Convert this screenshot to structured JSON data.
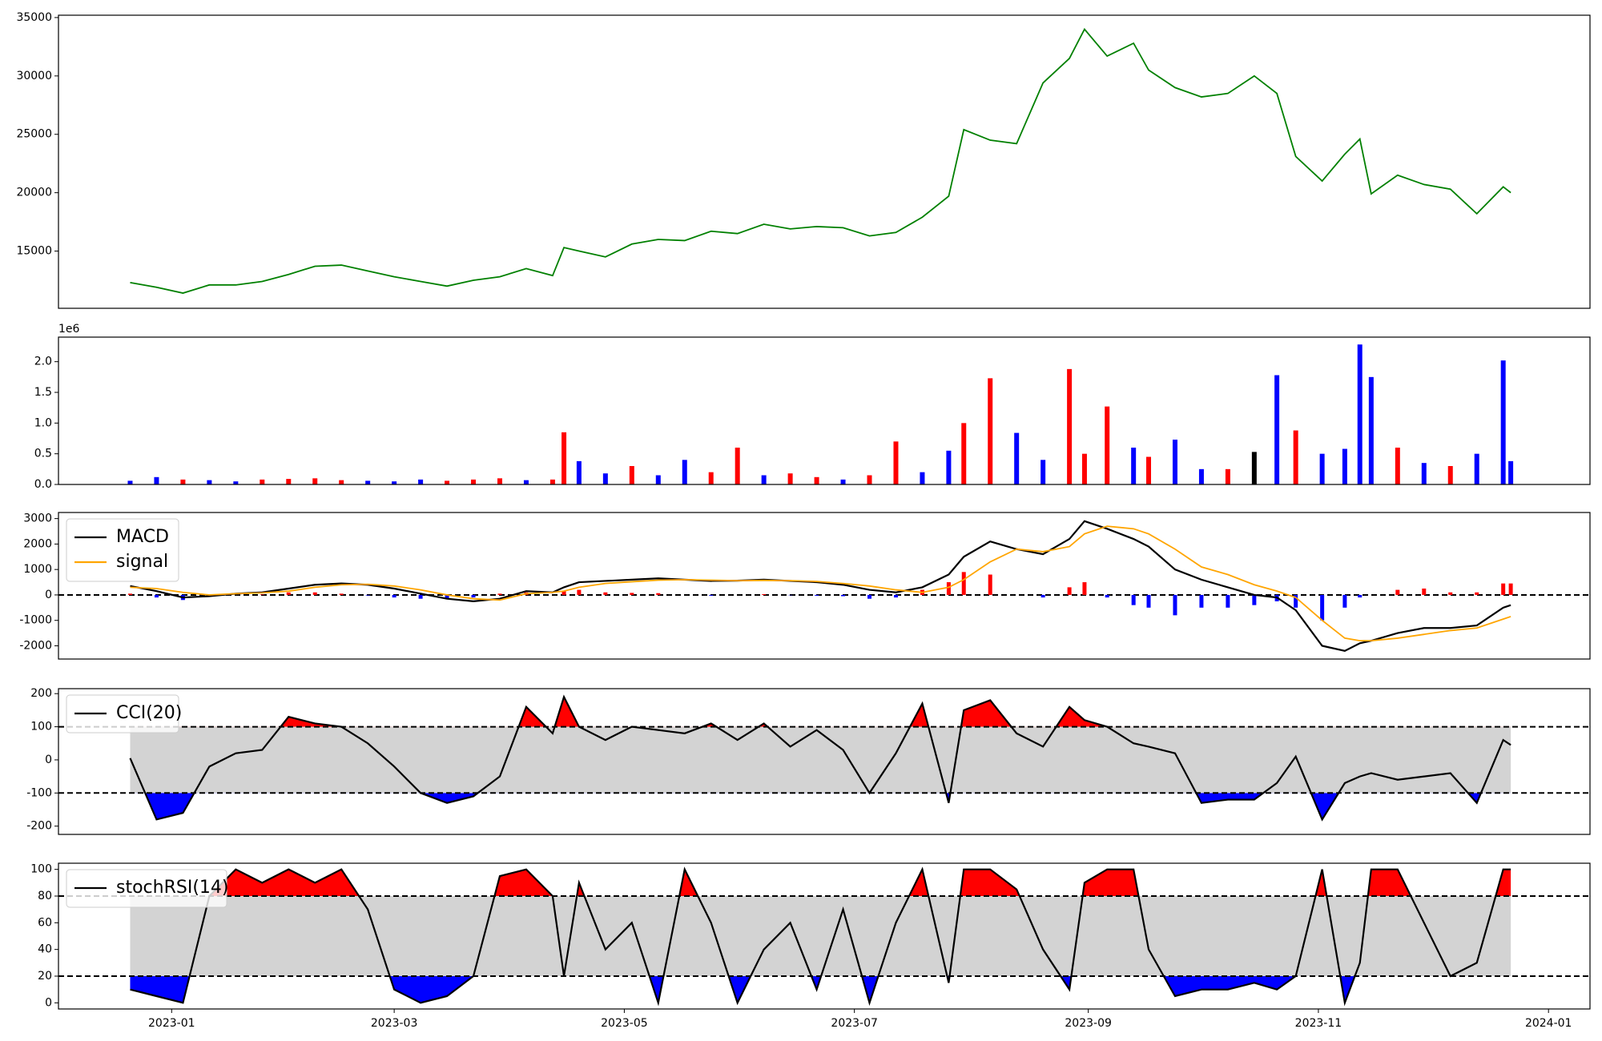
{
  "chart_data": [
    {
      "type": "line",
      "color": "green",
      "x": [
        -11,
        -4,
        3,
        10,
        17,
        24,
        31,
        38,
        45,
        52,
        59,
        66,
        73,
        80,
        87,
        94,
        101,
        104,
        108,
        115,
        122,
        129,
        136,
        143,
        150,
        157,
        164,
        171,
        178,
        185,
        192,
        199,
        206,
        210,
        217,
        224,
        231,
        238,
        242,
        248,
        255,
        259,
        266,
        273,
        280,
        287,
        293,
        298,
        305,
        311,
        315,
        318,
        325,
        332,
        339,
        346,
        353,
        355
      ],
      "values": [
        12300,
        11900,
        11400,
        12100,
        12100,
        12400,
        13000,
        13700,
        13800,
        13300,
        12800,
        12400,
        12000,
        12500,
        12800,
        13500,
        12900,
        15300,
        15000,
        14500,
        15600,
        16000,
        15900,
        16700,
        16500,
        17300,
        16900,
        17100,
        17000,
        16300,
        16600,
        17900,
        19700,
        25400,
        24500,
        24200,
        29400,
        31500,
        34000,
        31700,
        32800,
        30500,
        29000,
        28200,
        28500,
        30000,
        28500,
        23100,
        21000,
        23300,
        24600,
        19900,
        21500,
        20700,
        20300,
        18200,
        20500,
        20000
      ],
      "xlim": [
        -30,
        376
      ],
      "ylim": [
        10100,
        35200
      ],
      "yticks": [
        15000,
        20000,
        25000,
        30000,
        35000
      ]
    },
    {
      "type": "bar",
      "y_offset_label": "1e6",
      "x": [
        -11,
        -4,
        3,
        10,
        17,
        24,
        31,
        38,
        45,
        52,
        59,
        66,
        73,
        80,
        87,
        94,
        101,
        104,
        108,
        115,
        122,
        129,
        136,
        143,
        150,
        157,
        164,
        171,
        178,
        185,
        192,
        199,
        206,
        210,
        217,
        224,
        231,
        238,
        242,
        248,
        255,
        259,
        266,
        273,
        280,
        287,
        293,
        298,
        305,
        311,
        315,
        318,
        325,
        332,
        339,
        346,
        353,
        355
      ],
      "values": [
        0.06,
        0.12,
        0.08,
        0.07,
        0.05,
        0.08,
        0.09,
        0.1,
        0.07,
        0.06,
        0.05,
        0.08,
        0.06,
        0.08,
        0.1,
        0.07,
        0.08,
        0.85,
        0.38,
        0.18,
        0.3,
        0.15,
        0.4,
        0.2,
        0.6,
        0.15,
        0.18,
        0.12,
        0.08,
        0.15,
        0.7,
        0.2,
        0.55,
        1.0,
        1.73,
        0.84,
        0.4,
        1.88,
        0.5,
        1.27,
        0.6,
        0.45,
        0.73,
        0.25,
        0.25,
        0.53,
        1.78,
        0.88,
        0.5,
        0.58,
        2.28,
        1.75,
        0.6,
        0.35,
        0.3,
        0.5,
        2.02,
        0.38
      ],
      "colors": [
        "blue",
        "blue",
        "red",
        "blue",
        "blue",
        "red",
        "red",
        "red",
        "red",
        "blue",
        "blue",
        "blue",
        "red",
        "red",
        "red",
        "blue",
        "red",
        "red",
        "blue",
        "blue",
        "red",
        "blue",
        "blue",
        "red",
        "red",
        "blue",
        "red",
        "red",
        "blue",
        "red",
        "red",
        "blue",
        "blue",
        "red",
        "red",
        "blue",
        "blue",
        "red",
        "red",
        "red",
        "blue",
        "red",
        "blue",
        "blue",
        "red",
        "black",
        "blue",
        "red",
        "blue",
        "blue",
        "blue",
        "blue",
        "red",
        "blue",
        "red",
        "blue",
        "blue",
        "blue"
      ],
      "xlim": [
        -30,
        376
      ],
      "ylim": [
        0,
        2.4
      ],
      "yticks": [
        {
          "value": 0,
          "label": "0.0"
        },
        0.5,
        {
          "value": 1,
          "label": "1.0"
        },
        1.5,
        {
          "value": 2,
          "label": "2.0"
        }
      ]
    },
    {
      "type": "line",
      "legend": "upper left",
      "x": [
        -11,
        -4,
        3,
        10,
        17,
        24,
        31,
        38,
        45,
        52,
        59,
        66,
        73,
        80,
        87,
        94,
        101,
        104,
        108,
        115,
        122,
        129,
        136,
        143,
        150,
        157,
        164,
        171,
        178,
        185,
        192,
        199,
        206,
        210,
        217,
        224,
        231,
        238,
        242,
        248,
        255,
        259,
        266,
        273,
        280,
        287,
        293,
        298,
        305,
        311,
        315,
        318,
        325,
        332,
        339,
        346,
        353,
        355
      ],
      "series": [
        {
          "name": "MACD",
          "color": "black",
          "values": [
            350,
            150,
            -100,
            -50,
            50,
            100,
            250,
            400,
            450,
            400,
            250,
            50,
            -150,
            -250,
            -150,
            150,
            100,
            300,
            500,
            550,
            600,
            650,
            600,
            550,
            560,
            600,
            550,
            500,
            400,
            200,
            100,
            300,
            800,
            1500,
            2100,
            1800,
            1600,
            2200,
            2900,
            2600,
            2200,
            1900,
            1000,
            600,
            300,
            0,
            -100,
            -600,
            -2000,
            -2200,
            -1900,
            -1800,
            -1500,
            -1300,
            -1300,
            -1200,
            -500,
            -400
          ]
        },
        {
          "name": "signal",
          "color": "orange",
          "values": [
            300,
            250,
            100,
            0,
            50,
            80,
            150,
            300,
            400,
            420,
            350,
            200,
            0,
            -150,
            -200,
            50,
            100,
            150,
            300,
            450,
            520,
            580,
            600,
            580,
            560,
            570,
            560,
            530,
            450,
            350,
            200,
            100,
            300,
            600,
            1300,
            1800,
            1700,
            1900,
            2400,
            2700,
            2600,
            2400,
            1800,
            1100,
            800,
            400,
            150,
            -100,
            -1000,
            -1700,
            -1800,
            -1800,
            -1700,
            -1550,
            -1400,
            -1300,
            -950,
            -850
          ]
        }
      ],
      "histogram": [
        50,
        -100,
        -200,
        -50,
        0,
        20,
        100,
        100,
        50,
        -20,
        -100,
        -150,
        -150,
        -100,
        50,
        100,
        0,
        150,
        200,
        100,
        80,
        70,
        0,
        -30,
        0,
        30,
        -10,
        -30,
        -50,
        -150,
        -100,
        200,
        500,
        900,
        800,
        0,
        -100,
        300,
        500,
        -100,
        -400,
        -500,
        -800,
        -500,
        -500,
        -400,
        -250,
        -500,
        -1000,
        -500,
        -100,
        0,
        200,
        250,
        100,
        100,
        450,
        450
      ],
      "up_color": "red",
      "down_color": "blue",
      "hlines": [
        0
      ],
      "xlim": [
        -30,
        376
      ],
      "ylim": [
        -2520,
        3240
      ],
      "yticks": [
        -2000,
        -1000,
        0,
        1000,
        2000,
        3000
      ]
    },
    {
      "type": "line",
      "legend": "upper left",
      "x": [
        -11,
        -4,
        3,
        10,
        17,
        24,
        31,
        38,
        45,
        52,
        59,
        66,
        73,
        80,
        87,
        94,
        101,
        104,
        108,
        115,
        122,
        129,
        136,
        143,
        150,
        157,
        164,
        171,
        178,
        185,
        192,
        199,
        206,
        210,
        217,
        224,
        231,
        238,
        242,
        248,
        255,
        259,
        266,
        273,
        280,
        287,
        293,
        298,
        305,
        311,
        315,
        318,
        325,
        332,
        339,
        346,
        353,
        355
      ],
      "series": [
        {
          "name": "CCI(20)",
          "color": "black",
          "values": [
            5,
            -180,
            -160,
            -20,
            20,
            30,
            130,
            110,
            100,
            50,
            -20,
            -100,
            -130,
            -110,
            -50,
            160,
            80,
            190,
            100,
            60,
            100,
            90,
            80,
            110,
            60,
            110,
            40,
            90,
            30,
            -100,
            20,
            170,
            -130,
            150,
            180,
            80,
            40,
            160,
            120,
            100,
            50,
            40,
            20,
            -130,
            -120,
            -120,
            -70,
            10,
            -180,
            -70,
            -50,
            -40,
            -60,
            -50,
            -40,
            -130,
            60,
            45
          ]
        }
      ],
      "hlines": [
        100,
        -100
      ],
      "upper_fill": "red",
      "lower_fill": "blue",
      "band_fill": "lightgray",
      "xlim": [
        -30,
        376
      ],
      "ylim": [
        -225,
        215
      ],
      "yticks": [
        -200,
        -100,
        0,
        100,
        200
      ]
    },
    {
      "type": "line",
      "legend": "upper left",
      "x": [
        -11,
        -4,
        3,
        10,
        17,
        24,
        31,
        38,
        45,
        52,
        59,
        66,
        73,
        80,
        87,
        94,
        101,
        104,
        108,
        115,
        122,
        129,
        136,
        143,
        150,
        157,
        164,
        171,
        178,
        185,
        192,
        199,
        206,
        210,
        217,
        224,
        231,
        238,
        242,
        248,
        255,
        259,
        266,
        273,
        280,
        287,
        293,
        298,
        305,
        311,
        315,
        318,
        325,
        332,
        339,
        346,
        353,
        355
      ],
      "series": [
        {
          "name": "stochRSI(14)",
          "color": "black",
          "values": [
            10,
            5,
            0,
            80,
            100,
            90,
            100,
            90,
            100,
            70,
            10,
            0,
            5,
            20,
            95,
            100,
            80,
            20,
            90,
            40,
            60,
            0,
            100,
            60,
            0,
            40,
            60,
            10,
            70,
            0,
            60,
            100,
            15,
            100,
            100,
            85,
            40,
            10,
            90,
            100,
            100,
            40,
            5,
            10,
            10,
            15,
            10,
            20,
            100,
            0,
            30,
            100,
            100,
            60,
            20,
            30,
            100,
            100
          ]
        }
      ],
      "hlines": [
        80,
        20
      ],
      "upper_fill": "red",
      "lower_fill": "blue",
      "band_fill": "lightgray",
      "xlim": [
        -30,
        376
      ],
      "ylim": [
        -4.6,
        104.6
      ],
      "yticks": [
        0,
        20,
        40,
        60,
        80,
        100
      ],
      "xticks": [
        {
          "value": 0,
          "label": "2023-01"
        },
        {
          "value": 59,
          "label": "2023-03"
        },
        {
          "value": 120,
          "label": "2023-05"
        },
        {
          "value": 181,
          "label": "2023-07"
        },
        {
          "value": 243,
          "label": "2023-09"
        },
        {
          "value": 304,
          "label": "2023-11"
        },
        {
          "value": 365,
          "label": "2024-01"
        }
      ]
    }
  ]
}
